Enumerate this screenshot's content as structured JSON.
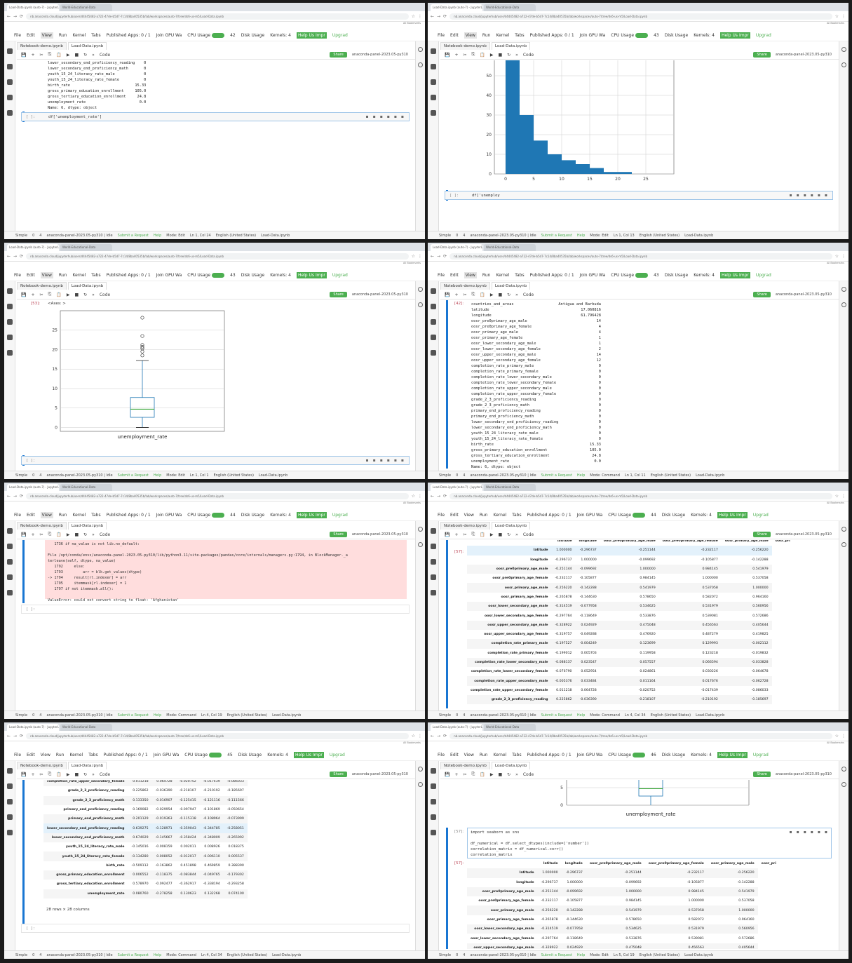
{
  "browser": {
    "tab1": "Load-Data.ipynb (auto-7) - JupyterLab",
    "tab2": "World-Educational-Data",
    "url": "nb.anaconda.cloud/jupyterhub/user/d4445482-a722-47de-b5d7-7c14/8ba40535b/lab/workspaces/auto-7/tree/ds6-us-m5/Load-Data.ipynb",
    "bookmarks": "All Bookmarks"
  },
  "menu": {
    "items": [
      "File",
      "Edit",
      "View",
      "Run",
      "Kernel",
      "Tabs"
    ],
    "published": "Published Apps: 0 / 1",
    "gpu": "Join GPU Wa",
    "cpu": "CPU Usage",
    "disk": "Disk Usage",
    "kernels": "Kernels: 4",
    "help": "Help Us Impr",
    "upgrade": "Upgrad"
  },
  "doc_tabs": [
    "Notebook-demo.ipynb",
    "Load-Data.ipynb"
  ],
  "toolbar": {
    "celltype": "Code",
    "share": "Share",
    "kernel": "anaconda-panel-2023.05-py310"
  },
  "status": {
    "simple": "Simple",
    "zero": "0",
    "four": "4",
    "env": "anaconda-panel-2023.05-py310 | Idle",
    "request": "Submit a Request",
    "help": "Help",
    "file": "Load-Data.ipynb",
    "lang": "English (United States)"
  },
  "panels": [
    {
      "counter": "42",
      "mode": "Mode: Edit",
      "ln": "Ln 1, Col 24"
    },
    {
      "counter": "43",
      "mode": "Mode: Edit",
      "ln": "Ln 1, Col 13"
    },
    {
      "counter": "43",
      "mode": "Mode: Edit",
      "ln": "Ln 1, Col 1"
    },
    {
      "counter": "43",
      "mode": "Mode: Command",
      "ln": "Ln 1, Col 11"
    },
    {
      "counter": "44",
      "mode": "Mode: Command",
      "ln": "Ln 4, Col 19"
    },
    {
      "counter": "44",
      "mode": "Mode: Command",
      "ln": "Ln 4, Col 34"
    },
    {
      "counter": "45",
      "mode": "Mode: Command",
      "ln": "Ln 4, Col 34"
    },
    {
      "counter": "46",
      "mode": "Mode: Edit",
      "ln": "Ln 5, Col 19"
    }
  ],
  "p1": {
    "output": "lower_secondary_end_proficiency_reading    0\nlower_secondary_end_proficiency_math       0\nyouth_15_24_literacy_rate_male             0\nyouth_15_24_literacy_rate_female           0\nbirth_rate                             15.33\ngross_primary_education_enrollment     105.0\ngross_tertiary_education_enrollment     24.8\nunemployment_rate                        0.0\nName: 6, dtype: object",
    "prompt": "[ ]:",
    "code": "df['unemployment_rate']"
  },
  "p2": {
    "prompt": "[ ]:",
    "code": "df['unemploy"
  },
  "p3": {
    "out_prompt": "[53]:",
    "axes": "<Axes: >",
    "xlabel": "unemployment_rate",
    "prompt": "[ ]:"
  },
  "p4": {
    "out_prompt": "[42]:",
    "output": "countries_and_areas                    Antigua and Barbuda\nlatitude                                         17.060816\nlongitude                                        61.796428\noosr_pre0primary_age_male                               14\noosr_pre0primary_age_female                              4\noosr_primary_age_male                                    4\noosr_primary_age_female                                  1\noosr_lower_secondary_age_male                            1\noosr_lower_secondary_age_female                          2\noosr_upper_secondary_age_male                           14\noosr_upper_secondary_age_female                         12\ncompletion_rate_primary_male                             0\ncompletion_rate_primary_female                           0\ncompletion_rate_lower_secondary_male                     0\ncompletion_rate_lower_secondary_female                   0\ncompletion_rate_upper_secondary_male                     0\ncompletion_rate_upper_secondary_female                   0\ngrade_2_3_proficiency_reading                            0\ngrade_2_3_proficiency_math                               0\nprimary_end_proficiency_reading                          0\nprimary_end_proficiency_math                             0\nlower_secondary_end_proficiency_reading                  0\nlower_secondary_end_proficiency_math                     0\nyouth_15_24_literacy_rate_male                           0\nyouth_15_24_literacy_rate_female                         0\nbirth_rate                                           15.33\ngross_primary_education_enrollment                   105.0\ngross_tertiary_education_enrollment                   24.8\nunemployment_rate                                      0.0\nName: 6, dtype: object"
  },
  "p5": {
    "trace": "   1736 if na_value is not lib.no_default:\n\nFile /opt/conda/envs/anaconda-panel-2023.05-py310/lib/python3.11/site-packages/pandas/core/internals/managers.py:1794, in BlockManager._a\nterleave(self, dtype, na_value)\n   1792     else:\n   1793         arr = blk.get_values(dtype)\n-> 1794     result[rl.indexer] = arr\n   1795     itemmask[rl.indexer] = 1\n   1797 if not itemmask.all():\n\nValueError: could not convert string to float: 'Afghanistan'",
    "prompt": "[ ]:"
  },
  "corr_cols": [
    "latitude",
    "longitude",
    "oosr_pre0primary_age_male",
    "oosr_pre0primary_age_female",
    "oosr_primary_age_male",
    "oosr_pri"
  ],
  "p6": {
    "out_prompt": "[57]:",
    "rows": [
      [
        "latitude",
        "1.000000",
        "-0.296737",
        "-0.251144",
        "-0.232117",
        "-0.256220"
      ],
      [
        "longitude",
        "-0.296737",
        "1.000000",
        "-0.099692",
        "-0.105877",
        "-0.142288"
      ],
      [
        "oosr_pre0primary_age_male",
        "-0.251144",
        "-0.099692",
        "1.000000",
        "0.984145",
        "0.541979"
      ],
      [
        "oosr_pre0primary_age_female",
        "-0.232117",
        "-0.105877",
        "0.984145",
        "1.000000",
        "0.537058"
      ],
      [
        "oosr_primary_age_male",
        "-0.256220",
        "-0.142288",
        "0.541979",
        "0.537058",
        "1.000000"
      ],
      [
        "oosr_primary_age_female",
        "-0.265878",
        "-0.144630",
        "0.578650",
        "0.582072",
        "0.964160"
      ],
      [
        "oosr_lower_secondary_age_male",
        "-0.314519",
        "-0.077958",
        "0.534625",
        "0.531979",
        "0.560956"
      ],
      [
        "oosr_lower_secondary_age_female",
        "-0.297764",
        "-0.118649",
        "0.533876",
        "0.539081",
        "0.572686"
      ],
      [
        "oosr_upper_secondary_age_male",
        "-0.328922",
        "0.024929",
        "0.475048",
        "0.456563",
        "0.405644"
      ],
      [
        "oosr_upper_secondary_age_female",
        "-0.319757",
        "-0.049288",
        "0.476920",
        "0.487279",
        "0.419825"
      ],
      [
        "completion_rate_primary_male",
        "-0.197527",
        "-0.004249",
        "0.123699",
        "0.129993",
        "-0.002112"
      ],
      [
        "completion_rate_primary_female",
        "-0.199012",
        "0.005703",
        "0.119958",
        "0.123218",
        "-0.019832"
      ],
      [
        "completion_rate_lower_secondary_male",
        "-0.088137",
        "0.023547",
        "0.057557",
        "0.066594",
        "-0.033828"
      ],
      [
        "completion_rate_lower_secondary_female",
        "-0.076790",
        "0.052954",
        "0.024861",
        "0.030226",
        "-0.064678"
      ],
      [
        "completion_rate_upper_secondary_male",
        "-0.005376",
        "0.033484",
        "0.011164",
        "0.017676",
        "-0.062728"
      ],
      [
        "completion_rate_upper_secondary_female",
        "0.011218",
        "0.064728",
        "-0.020752",
        "-0.017439",
        "-0.086033"
      ],
      [
        "grade_2_3_proficiency_reading",
        "0.225862",
        "-0.036390",
        "-0.218107",
        "-0.210192",
        "-0.185697"
      ]
    ]
  },
  "p7": {
    "rows": [
      [
        "completion_rate_upper_secondary_female",
        "0.011218",
        "0.064728",
        "-0.020752",
        "-0.017439",
        "-0.086033"
      ],
      [
        "grade_2_3_proficiency_reading",
        "0.225862",
        "-0.036390",
        "-0.218107",
        "-0.210192",
        "-0.185697"
      ],
      [
        "grade_2_3_proficiency_math",
        "0.133350",
        "-0.016907",
        "-0.125415",
        "-0.121116",
        "-0.111566"
      ],
      [
        "primary_end_proficiency_reading",
        "0.169082",
        "-0.029954",
        "-0.097947",
        "-0.101869",
        "-0.050654"
      ],
      [
        "primary_end_proficiency_math",
        "0.201129",
        "-0.019363",
        "-0.115318",
        "-0.108964",
        "-0.073999"
      ],
      [
        "lower_secondary_end_proficiency_reading",
        "0.639275",
        "-0.128971",
        "-0.359043",
        "-0.344785",
        "-0.258051"
      ],
      [
        "lower_secondary_end_proficiency_math",
        "0.674029",
        "-0.145667",
        "-0.358424",
        "-0.348009",
        "-0.265992"
      ],
      [
        "youth_15_24_literacy_rate_male",
        "-0.145016",
        "-0.008159",
        "0.002011",
        "0.008926",
        "0.018375"
      ],
      [
        "youth_15_24_literacy_rate_female",
        "-0.134280",
        "0.008052",
        "-0.012017",
        "-0.006110",
        "0.005537"
      ],
      [
        "birth_rate",
        "-0.509112",
        "-0.163862",
        "0.451898",
        "0.469859",
        "0.388390"
      ],
      [
        "gross_primary_education_enrollment",
        "0.006552",
        "-0.118375",
        "-0.083844",
        "-0.049765",
        "-0.179302"
      ],
      [
        "gross_tertiary_education_enrollment",
        "0.578970",
        "-0.092477",
        "-0.362917",
        "-0.338194",
        "-0.293258"
      ],
      [
        "unemployment_rate",
        "0.080760",
        "-0.278258",
        "0.130623",
        "0.132268",
        "0.074100"
      ]
    ],
    "footer": "28 rows × 28 columns",
    "prompt": "[ ]:"
  },
  "p8": {
    "xlabel": "unemployment_rate",
    "in_prompt": "[57]:",
    "code": "import seaborn as sns\n\ndf_numerical = df.select_dtypes(include=['number'])\ncorrelation_matrix = df_numerical.corr()\ncorrelation_matrix",
    "out_prompt": "[57]:",
    "rows": [
      [
        "latitude",
        "1.000000",
        "-0.296737",
        "-0.251144",
        "-0.232117",
        "-0.256220"
      ],
      [
        "longitude",
        "-0.296737",
        "1.000000",
        "-0.099692",
        "-0.105877",
        "-0.142288"
      ],
      [
        "oosr_pre0primary_age_male",
        "-0.251144",
        "-0.099692",
        "1.000000",
        "0.984145",
        "0.541979"
      ],
      [
        "oosr_pre0primary_age_female",
        "-0.232117",
        "-0.105877",
        "0.984145",
        "1.000000",
        "0.537058"
      ],
      [
        "oosr_primary_age_male",
        "-0.256220",
        "-0.142288",
        "0.541979",
        "0.537058",
        "1.000000"
      ],
      [
        "oosr_primary_age_female",
        "-0.265878",
        "-0.144630",
        "0.578650",
        "0.582072",
        "0.964160"
      ],
      [
        "oosr_lower_secondary_age_male",
        "-0.314519",
        "-0.077958",
        "0.534625",
        "0.531979",
        "0.560956"
      ],
      [
        "oosr_lower_secondary_age_female",
        "-0.297764",
        "-0.118649",
        "0.533876",
        "0.539081",
        "0.572686"
      ],
      [
        "oosr_upper_secondary_age_male",
        "-0.328922",
        "0.024929",
        "0.475048",
        "0.456563",
        "0.405644"
      ]
    ]
  },
  "chart_data": [
    {
      "type": "bar",
      "x": [
        0,
        2.5,
        5,
        7.5,
        10,
        12.5,
        15,
        17.5,
        20,
        22.5,
        25,
        27.5
      ],
      "values": [
        61,
        30,
        17,
        10,
        7,
        5,
        3,
        1,
        1,
        0,
        0,
        0
      ],
      "xticks": [
        "0",
        "5",
        "10",
        "15",
        "20",
        "25"
      ],
      "yticks": [
        "0",
        "10",
        "20",
        "30",
        "40",
        "50"
      ],
      "xlim": [
        -2,
        30
      ],
      "ylim": [
        0,
        60
      ],
      "color": "#1f77b4",
      "grid": true
    },
    {
      "type": "boxplot",
      "xlabel": "unemployment_rate",
      "q1": 2.6,
      "median": 4.7,
      "q3": 7.7,
      "whisker_low": 0,
      "whisker_high": 17.2,
      "outliers": [
        18.5,
        19.5,
        20.3,
        20.7,
        21.2,
        23.5,
        28.2
      ],
      "yticks": [
        "0",
        "5",
        "10",
        "15",
        "20",
        "25"
      ],
      "ylim": [
        -1,
        30
      ],
      "color": "#1f77b4",
      "median_color": "#2ca02c"
    }
  ]
}
